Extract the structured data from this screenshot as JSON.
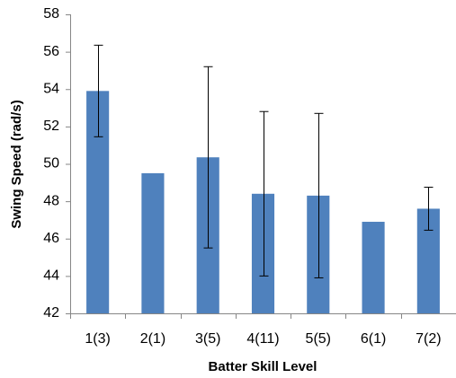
{
  "chart_data": {
    "type": "bar",
    "x_label": "Batter Skill Level",
    "y_label": "Swing Speed (rad/s)",
    "categories": [
      "1(3)",
      "2(1)",
      "3(5)",
      "4(11)",
      "5(5)",
      "6(1)",
      "7(2)"
    ],
    "values": [
      53.9,
      49.5,
      50.35,
      48.4,
      48.3,
      46.9,
      47.6
    ],
    "errors": [
      2.45,
      null,
      4.85,
      4.4,
      4.4,
      null,
      1.15
    ],
    "color": "#4f81bd",
    "ylim": [
      42,
      58
    ],
    "yticks": [
      42,
      44,
      46,
      48,
      50,
      52,
      54,
      56,
      58
    ],
    "grid": false
  }
}
